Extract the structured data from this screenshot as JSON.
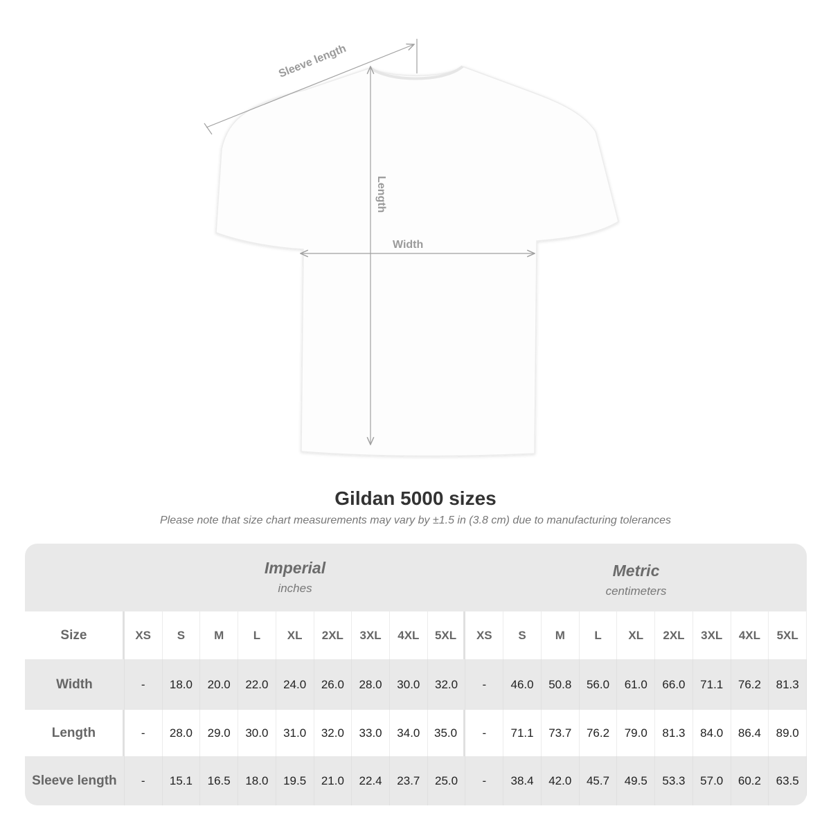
{
  "diagram": {
    "sleeve_label": "Sleeve length",
    "length_label": "Length",
    "width_label": "Width"
  },
  "title": "Gildan 5000 sizes",
  "note": "Please note that size chart measurements may vary by ±1.5 in (3.8 cm) due to manufacturing tolerances",
  "imperial": {
    "title": "Imperial",
    "unit": "inches"
  },
  "metric": {
    "title": "Metric",
    "unit": "centimeters"
  },
  "size_label": "Size",
  "sizes": [
    "XS",
    "S",
    "M",
    "L",
    "XL",
    "2XL",
    "3XL",
    "4XL",
    "5XL"
  ],
  "rows": [
    {
      "label": "Width",
      "imperial": [
        "-",
        "18.0",
        "20.0",
        "22.0",
        "24.0",
        "26.0",
        "28.0",
        "30.0",
        "32.0"
      ],
      "metric": [
        "-",
        "46.0",
        "50.8",
        "56.0",
        "61.0",
        "66.0",
        "71.1",
        "76.2",
        "81.3"
      ]
    },
    {
      "label": "Length",
      "imperial": [
        "-",
        "28.0",
        "29.0",
        "30.0",
        "31.0",
        "32.0",
        "33.0",
        "34.0",
        "35.0"
      ],
      "metric": [
        "-",
        "71.1",
        "73.7",
        "76.2",
        "79.0",
        "81.3",
        "84.0",
        "86.4",
        "89.0"
      ]
    },
    {
      "label": "Sleeve length",
      "imperial": [
        "-",
        "15.1",
        "16.5",
        "18.0",
        "19.5",
        "21.0",
        "22.4",
        "23.7",
        "25.0"
      ],
      "metric": [
        "-",
        "38.4",
        "42.0",
        "45.7",
        "49.5",
        "53.3",
        "57.0",
        "60.2",
        "63.5"
      ]
    }
  ],
  "colors": {
    "table_gray": "#e9e9e9",
    "label_gray": "#6b6b6b",
    "measure_line": "#a0a0a0"
  }
}
